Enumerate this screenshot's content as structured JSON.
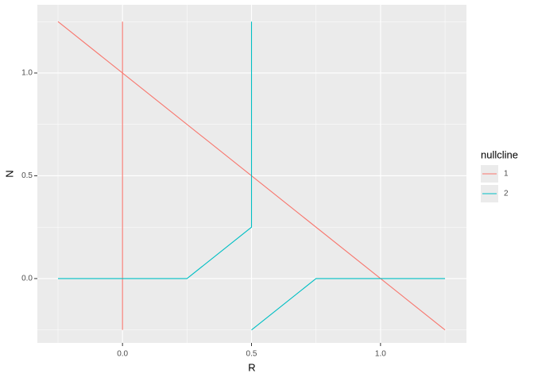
{
  "chart_data": {
    "type": "line",
    "x_label": "R",
    "y_label": "N",
    "legend_title": "nullcline",
    "legend": "right",
    "grid": true,
    "xlim": [
      -0.33,
      1.333
    ],
    "ylim": [
      -0.313,
      1.332
    ],
    "xticks": [
      {
        "value": 0,
        "label": "0.0"
      },
      {
        "value": 0.5,
        "label": "0.5"
      },
      {
        "value": 1,
        "label": "1.0"
      }
    ],
    "yticks": [
      {
        "value": 0,
        "label": "0.0"
      },
      {
        "value": 0.5,
        "label": "0.5"
      },
      {
        "value": 1,
        "label": "1.0"
      }
    ],
    "series": [
      {
        "name": "1",
        "color": "#F8766D",
        "x": [
          -0.25,
          1.25,
          null,
          0,
          0
        ],
        "values": [
          1.25,
          -0.25,
          null,
          -0.25,
          1.25
        ]
      },
      {
        "name": "2",
        "color": "#00BFC4",
        "x": [
          -0.25,
          0.25,
          0.5,
          0.5,
          null,
          0.5,
          0.75,
          1.25
        ],
        "values": [
          0,
          0,
          0.25,
          1.25,
          null,
          -0.25,
          0,
          0
        ]
      }
    ]
  }
}
